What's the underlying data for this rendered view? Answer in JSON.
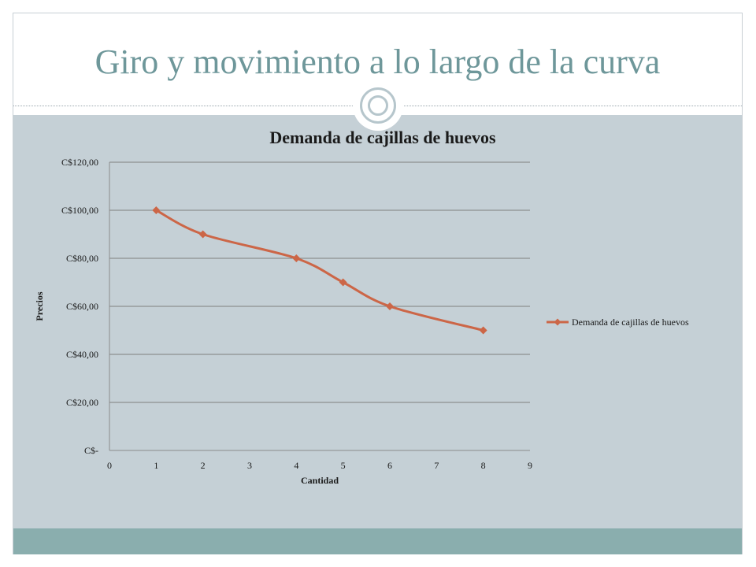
{
  "slide": {
    "title": "Giro y movimiento a lo largo de la curva"
  },
  "colors": {
    "title": "#6e979a",
    "content_band": "#c5d0d6",
    "footer_band": "#8aaeae",
    "series_line": "#cc6647",
    "gridline": "#7f7f7f"
  },
  "chart_data": {
    "type": "line",
    "title": "Demanda de cajillas de huevos",
    "xlabel": "Cantidad",
    "ylabel": "Precios",
    "x_ticks": [
      "0",
      "1",
      "2",
      "3",
      "4",
      "5",
      "6",
      "7",
      "8",
      "9"
    ],
    "y_ticks": [
      "C$-",
      "C$20,00",
      "C$40,00",
      "C$60,00",
      "C$80,00",
      "C$100,00",
      "C$120,00"
    ],
    "xlim": [
      0,
      9
    ],
    "ylim": [
      0,
      120
    ],
    "grid": "horizontal",
    "legend_position": "right",
    "series": [
      {
        "name": "Demanda de cajillas de huevos",
        "x": [
          1,
          2,
          4,
          5,
          6,
          8
        ],
        "y": [
          100,
          90,
          80,
          70,
          60,
          50
        ],
        "marker": "diamond",
        "smooth": true
      }
    ]
  }
}
